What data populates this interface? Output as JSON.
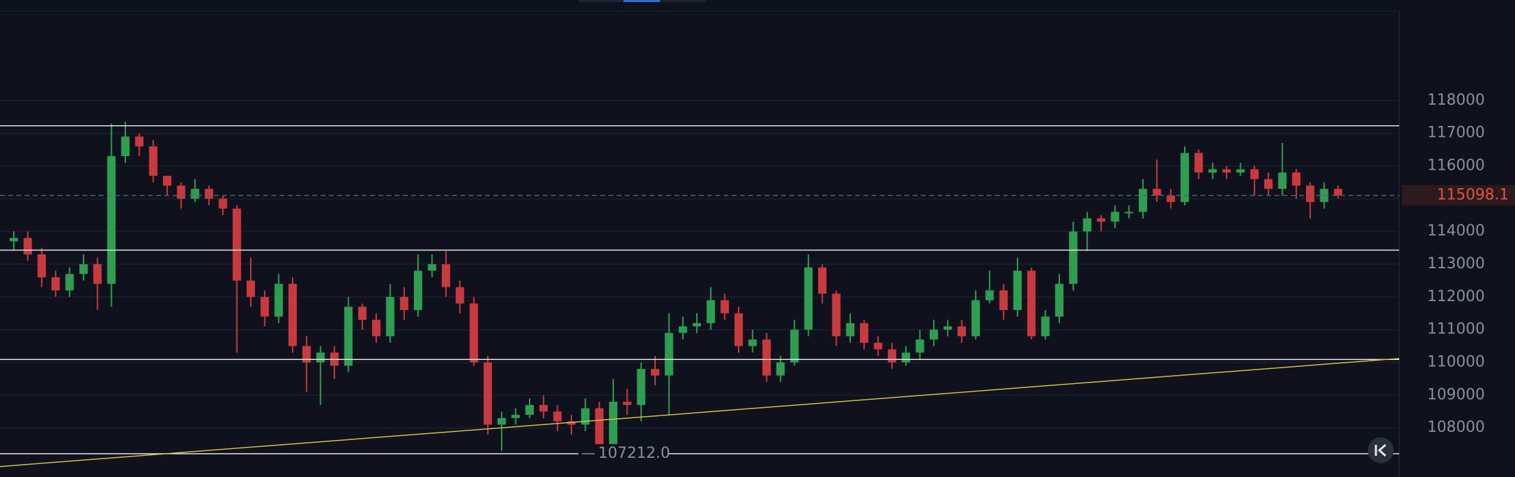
{
  "chart_data": {
    "type": "candlestick",
    "open": [
      113700,
      113800,
      113300,
      112600,
      112200,
      112700,
      113000,
      112400,
      116300,
      116900,
      116600,
      115700,
      115400,
      115000,
      115300,
      115000,
      114700,
      112500,
      112000,
      111400,
      112400,
      110500,
      110000,
      110300,
      109900,
      111700,
      111300,
      110800,
      112000,
      111600,
      112800,
      113000,
      112300,
      111800,
      110000,
      108100,
      108300,
      108400,
      108700,
      108500,
      108200,
      108100,
      108600,
      107500,
      108800,
      108700,
      109800,
      109600,
      110900,
      111100,
      111200,
      111900,
      111500,
      110500,
      110700,
      109600,
      110000,
      111000,
      112900,
      112100,
      110800,
      111200,
      110600,
      110400,
      110000,
      110300,
      110700,
      111000,
      111100,
      110800,
      111900,
      112200,
      111600,
      112800,
      110800,
      111400,
      112400,
      114000,
      114400,
      114300,
      114600,
      114600,
      115300,
      115100,
      114900,
      116400,
      115800,
      115900,
      115800,
      115900,
      115600,
      115300,
      115800,
      115400,
      114900,
      115300
    ],
    "high": [
      114000,
      114000,
      113500,
      112800,
      112900,
      113300,
      113200,
      117300,
      117350,
      117000,
      116800,
      115700,
      115500,
      115600,
      115400,
      115100,
      114800,
      113200,
      112200,
      112700,
      112600,
      110800,
      110500,
      110500,
      112000,
      111800,
      111500,
      112400,
      112300,
      113300,
      113300,
      113400,
      112500,
      112000,
      110200,
      108500,
      108600,
      108900,
      109000,
      108700,
      108400,
      108900,
      108800,
      109500,
      109200,
      110000,
      110200,
      111500,
      111400,
      111500,
      112300,
      112100,
      111700,
      111000,
      110900,
      110200,
      111300,
      113300,
      113000,
      112200,
      111500,
      111300,
      110800,
      110600,
      110500,
      111000,
      111300,
      111300,
      111300,
      112200,
      112800,
      112400,
      113200,
      112900,
      111600,
      112700,
      114300,
      114600,
      114500,
      114800,
      114800,
      115600,
      116200,
      115300,
      116600,
      116500,
      116100,
      116000,
      116100,
      116000,
      115800,
      116700,
      115900,
      115500,
      115500,
      115400
    ],
    "low": [
      113400,
      113100,
      112300,
      112000,
      112000,
      112500,
      111600,
      111700,
      116100,
      116300,
      115500,
      115100,
      114700,
      114900,
      114800,
      114500,
      110300,
      111700,
      111100,
      111200,
      110300,
      109100,
      108700,
      109500,
      109700,
      111000,
      110600,
      110600,
      111300,
      111400,
      112600,
      112000,
      111500,
      109900,
      107800,
      107300,
      108100,
      108300,
      108300,
      107900,
      107800,
      107900,
      107212,
      107300,
      108400,
      108200,
      109300,
      108400,
      110700,
      110900,
      111000,
      111300,
      110300,
      110300,
      109400,
      109400,
      109900,
      110800,
      111800,
      110500,
      110600,
      110400,
      110200,
      109800,
      109900,
      110100,
      110500,
      110800,
      110600,
      110700,
      111800,
      111300,
      111400,
      110700,
      110700,
      111200,
      112200,
      113400,
      114000,
      114100,
      114400,
      114400,
      114900,
      114700,
      114800,
      115600,
      115600,
      115600,
      115700,
      115100,
      115100,
      115100,
      115000,
      114400,
      114700,
      115000
    ],
    "close": [
      113800,
      113300,
      112600,
      112200,
      112700,
      113000,
      112400,
      116300,
      116900,
      116600,
      115700,
      115400,
      115000,
      115300,
      115000,
      114700,
      112500,
      112000,
      111400,
      112400,
      110500,
      110000,
      110300,
      109900,
      111700,
      111300,
      110800,
      112000,
      111600,
      112800,
      113000,
      112300,
      111800,
      110000,
      108100,
      108300,
      108400,
      108700,
      108500,
      108200,
      108100,
      108600,
      107500,
      108800,
      108700,
      109800,
      109600,
      110900,
      111100,
      111200,
      111900,
      111500,
      110500,
      110700,
      109600,
      110000,
      111000,
      112900,
      112100,
      110800,
      111200,
      110600,
      110400,
      110000,
      110300,
      110700,
      111000,
      111100,
      110800,
      111900,
      112200,
      111600,
      112800,
      110800,
      111400,
      112400,
      114000,
      114400,
      114300,
      114600,
      114600,
      115300,
      115100,
      114900,
      116400,
      115800,
      115900,
      115800,
      115900,
      115600,
      115300,
      115800,
      115400,
      114900,
      115300,
      115100
    ],
    "up_color": "#2e9e52",
    "down_color": "#c9393f",
    "ylim": [
      106500,
      121070
    ],
    "yticks": [
      108000,
      109000,
      110000,
      111000,
      112000,
      113000,
      114000,
      115000,
      116000,
      117000,
      118000
    ],
    "grid": true,
    "levels": [
      117230,
      113430,
      110090,
      107212
    ],
    "level_color": "#e6e6e6",
    "trend_line": [
      106820,
      110120
    ],
    "trend_color": "#d4c04a",
    "last_price": 115098.1,
    "last_price_color": "#e0533c",
    "annotation": {
      "value": 107212,
      "label": "107212.0"
    }
  }
}
